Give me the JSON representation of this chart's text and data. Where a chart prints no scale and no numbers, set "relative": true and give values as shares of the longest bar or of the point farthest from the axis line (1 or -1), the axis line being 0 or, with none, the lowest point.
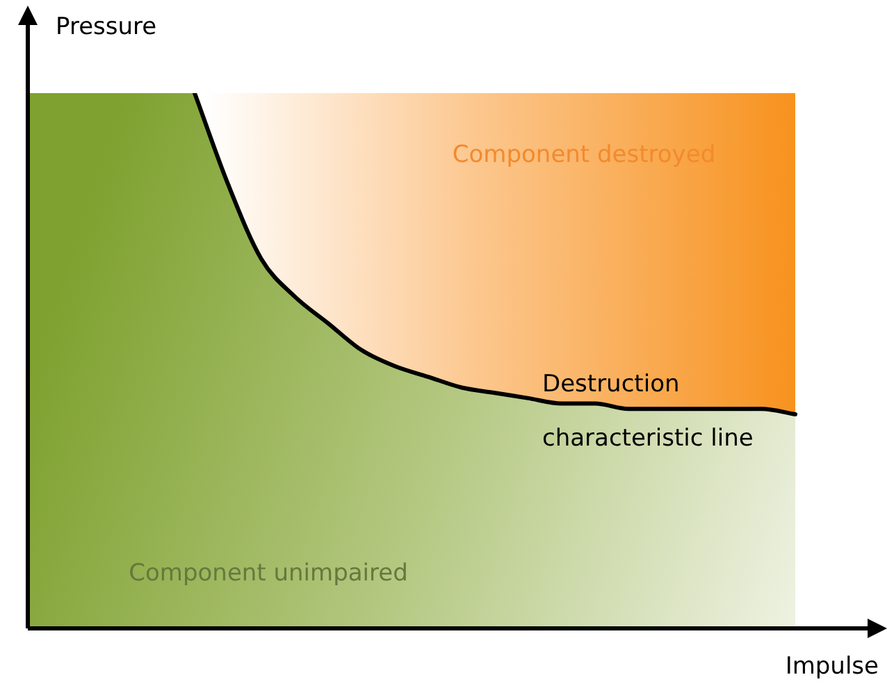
{
  "chart_data": {
    "type": "line",
    "relative": true,
    "xlabel": "Impulse",
    "ylabel": "Pressure",
    "categories": [
      null,
      null,
      null,
      null,
      null,
      null,
      null,
      null,
      null,
      null,
      null,
      null,
      null,
      null,
      null,
      null,
      null,
      null,
      null,
      null,
      null,
      null,
      null,
      null
    ],
    "series": [
      {
        "color": "#000000",
        "values": [
          null,
          null,
          null,
          null,
          null,
          1.0,
          0.83,
          0.69,
          0.62,
          0.57,
          0.52,
          0.49,
          0.47,
          0.45,
          0.44,
          0.43,
          0.42,
          0.42,
          0.41,
          0.41,
          0.41,
          0.41,
          0.41,
          0.4
        ]
      }
    ],
    "marker": "none",
    "line_style": "solid",
    "annotations": [
      "Component destroyed",
      "Destruction",
      "characteristic line",
      "Component unimpaired"
    ]
  }
}
